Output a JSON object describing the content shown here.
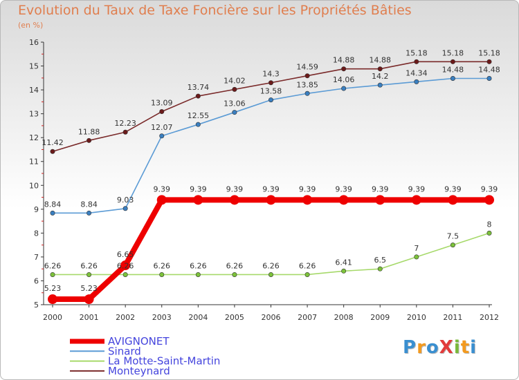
{
  "title": "Evolution du Taux de Taxe Foncière sur les Propriétés Bâties",
  "subtitle": "(en %)",
  "logo": {
    "text": "ProXiti",
    "letters": [
      {
        "ch": "P",
        "color": "#3a8fd0"
      },
      {
        "ch": "r",
        "color": "#f39a1f"
      },
      {
        "ch": "o",
        "color": "#3a8fd0"
      },
      {
        "ch": "X",
        "color": "#e23a3a"
      },
      {
        "ch": "i",
        "color": "#7ab93a"
      },
      {
        "ch": "t",
        "color": "#f39a1f"
      },
      {
        "ch": "i",
        "color": "#3a8fd0"
      }
    ]
  },
  "chart_data": {
    "type": "line",
    "x": [
      2000,
      2001,
      2002,
      2003,
      2004,
      2005,
      2006,
      2007,
      2008,
      2009,
      2010,
      2011,
      2012
    ],
    "ylim": [
      5,
      16
    ],
    "yticks": [
      5,
      6,
      7,
      8,
      9,
      10,
      11,
      12,
      13,
      14,
      15,
      16
    ],
    "grid": false,
    "legend_position": "bottom-left",
    "series": [
      {
        "name": "Monteynard",
        "color": "#7a2a2a",
        "marker": "#6b1a1a",
        "emphasis": false,
        "values": [
          11.42,
          11.88,
          12.23,
          13.09,
          13.74,
          14.02,
          14.3,
          14.59,
          14.88,
          14.88,
          15.18,
          15.18,
          15.18
        ],
        "labels": [
          "11.42",
          "11.88",
          "12.23",
          "13.09",
          "13.74",
          "14.02",
          "14.3",
          "14.59",
          "14.88",
          "14.88",
          "15.18",
          "15.18",
          "15.18"
        ]
      },
      {
        "name": "Sinard",
        "color": "#5b9bd5",
        "marker": "#3a7fc0",
        "emphasis": false,
        "values": [
          8.84,
          8.84,
          9.03,
          12.07,
          12.55,
          13.06,
          13.58,
          13.85,
          14.06,
          14.2,
          14.34,
          14.48,
          14.48
        ],
        "labels": [
          "8.84",
          "8.84",
          "9.03",
          "12.07",
          "12.55",
          "13.06",
          "13.58",
          "13.85",
          "14.06",
          "14.2",
          "14.34",
          "14.48",
          "14.48"
        ]
      },
      {
        "name": "La Motte-Saint-Martin",
        "color": "#a6d96a",
        "marker": "#7cc23a",
        "emphasis": false,
        "values": [
          6.26,
          6.26,
          6.26,
          6.26,
          6.26,
          6.26,
          6.26,
          6.26,
          6.41,
          6.5,
          7,
          7.5,
          8
        ],
        "labels": [
          "6.26",
          "6.26",
          "6.26",
          "6.26",
          "6.26",
          "6.26",
          "6.26",
          "6.26",
          "6.41",
          "6.5",
          "7",
          "7.5",
          "8"
        ]
      },
      {
        "name": "AVIGNONET",
        "color": "#ee0000",
        "marker": "#ee0000",
        "emphasis": true,
        "values": [
          5.23,
          5.23,
          6.65,
          9.39,
          9.39,
          9.39,
          9.39,
          9.39,
          9.39,
          9.39,
          9.39,
          9.39,
          9.39
        ],
        "labels": [
          "5.23",
          "5.23",
          "6.65",
          "9.39",
          "9.39",
          "9.39",
          "9.39",
          "9.39",
          "9.39",
          "9.39",
          "9.39",
          "9.39",
          "9.39"
        ]
      }
    ],
    "legend_order": [
      "AVIGNONET",
      "Sinard",
      "La Motte-Saint-Martin",
      "Monteynard"
    ],
    "legend_text_color": "#4444dd"
  }
}
